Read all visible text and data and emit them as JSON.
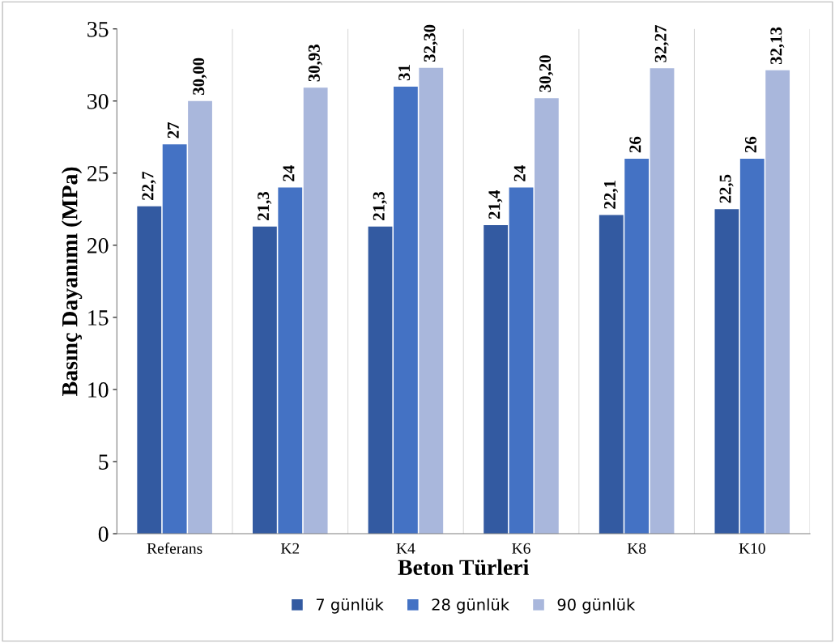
{
  "chart_data": {
    "type": "bar",
    "xlabel": "Beton Türleri",
    "ylabel": "Basınç Dayanımı (MPa)",
    "categories": [
      "Referans",
      "K2",
      "K4",
      "K6",
      "K8",
      "K10"
    ],
    "series": [
      {
        "name": "7 günlük",
        "color": "#335aa1",
        "values": [
          22.7,
          21.3,
          21.3,
          21.4,
          22.1,
          22.5
        ],
        "value_labels": [
          "22,7",
          "21,3",
          "21,3",
          "21,4",
          "22,1",
          "22,5"
        ]
      },
      {
        "name": "28 günlük",
        "color": "#4472c4",
        "values": [
          27,
          24,
          31,
          24,
          26,
          26
        ],
        "value_labels": [
          "27",
          "24",
          "31",
          "24",
          "26",
          "26"
        ]
      },
      {
        "name": "90 günlük",
        "color": "#a9b7dc",
        "values": [
          30.0,
          30.93,
          32.3,
          30.2,
          32.27,
          32.13
        ],
        "value_labels": [
          "30,00",
          "30,93",
          "32,30",
          "30,20",
          "32,27",
          "32,13"
        ]
      }
    ],
    "ylim": [
      0,
      35
    ],
    "yticks": [
      0,
      5,
      10,
      15,
      20,
      25,
      30,
      35
    ],
    "grid": "x",
    "legend": "bottom"
  }
}
